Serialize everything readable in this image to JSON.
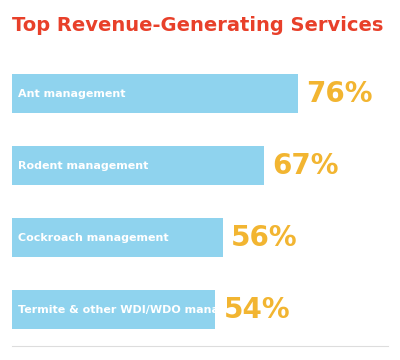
{
  "chart_data": {
    "type": "bar",
    "orientation": "horizontal",
    "title": "Top Revenue-Generating Services",
    "categories": [
      "Ant management",
      "Rodent management",
      "Cockroach management",
      "Termite & other WDI/WDO management"
    ],
    "values": [
      76,
      67,
      56,
      54
    ],
    "value_labels": [
      "76%",
      "67%",
      "56%",
      "54%"
    ],
    "data_labels": true,
    "color": "#8fd3ee",
    "xlim": [
      0,
      100
    ],
    "tick_labels": false,
    "grid": false
  }
}
